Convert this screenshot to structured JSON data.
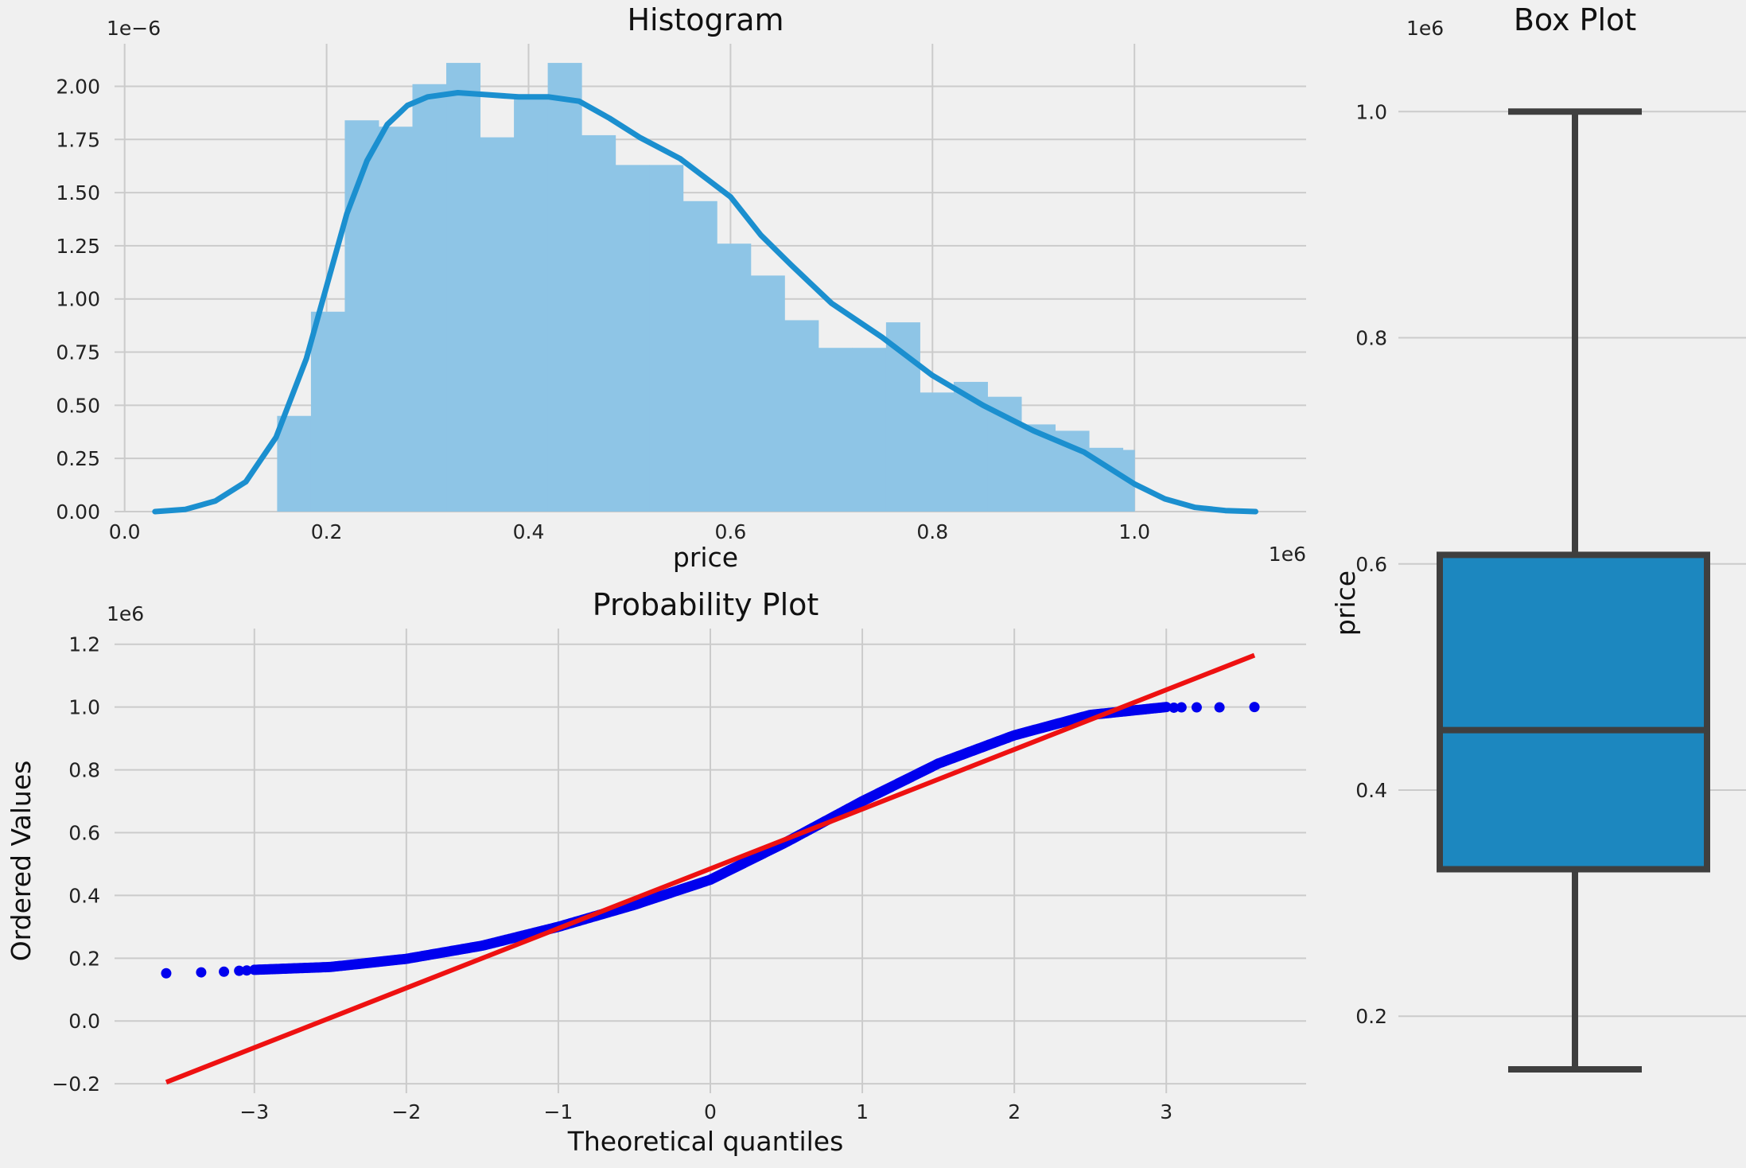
{
  "chart_data": [
    {
      "type": "bar",
      "title": "Histogram",
      "xlabel": "price",
      "ylabel": "",
      "x_offset_label": "1e6",
      "y_offset_label": "1e−6",
      "xlim": [
        -0.01,
        1.17
      ],
      "ylim": [
        0,
        2.2
      ],
      "x_ticks": [
        {
          "v": 0.0,
          "label": "0.0"
        },
        {
          "v": 0.2,
          "label": "0.2"
        },
        {
          "v": 0.4,
          "label": "0.4"
        },
        {
          "v": 0.6,
          "label": "0.6"
        },
        {
          "v": 0.8,
          "label": "0.8"
        },
        {
          "v": 1.0,
          "label": "1.0"
        }
      ],
      "y_ticks": [
        {
          "v": 0.0,
          "label": "0.00"
        },
        {
          "v": 0.25,
          "label": "0.25"
        },
        {
          "v": 0.5,
          "label": "0.50"
        },
        {
          "v": 0.75,
          "label": "0.75"
        },
        {
          "v": 1.0,
          "label": "1.00"
        },
        {
          "v": 1.25,
          "label": "1.25"
        },
        {
          "v": 1.5,
          "label": "1.50"
        },
        {
          "v": 1.75,
          "label": "1.75"
        },
        {
          "v": 2.0,
          "label": "2.00"
        }
      ],
      "bin_edges": [
        0.151,
        0.1845,
        0.218,
        0.2515,
        0.285,
        0.3185,
        0.352,
        0.3855,
        0.419,
        0.4525,
        0.486,
        0.5195,
        0.553,
        0.5865,
        0.62,
        0.6535,
        0.687,
        0.7205,
        0.754,
        0.7875,
        0.821,
        0.8545,
        0.888,
        0.9215,
        0.955,
        0.9885,
        1.0
      ],
      "values": [
        0.45,
        0.94,
        1.84,
        1.81,
        2.01,
        2.11,
        1.76,
        1.94,
        2.11,
        1.77,
        1.63,
        1.63,
        1.46,
        1.26,
        1.11,
        0.9,
        0.77,
        0.77,
        0.89,
        0.56,
        0.61,
        0.54,
        0.41,
        0.38,
        0.3,
        0.29
      ],
      "kde": {
        "x": [
          0.03,
          0.06,
          0.09,
          0.12,
          0.15,
          0.18,
          0.2,
          0.22,
          0.24,
          0.26,
          0.28,
          0.3,
          0.33,
          0.36,
          0.39,
          0.42,
          0.45,
          0.48,
          0.51,
          0.55,
          0.6,
          0.63,
          0.66,
          0.7,
          0.75,
          0.8,
          0.85,
          0.9,
          0.95,
          1.0,
          1.03,
          1.06,
          1.09,
          1.12
        ],
        "y": [
          0.0,
          0.01,
          0.05,
          0.14,
          0.35,
          0.72,
          1.06,
          1.4,
          1.65,
          1.82,
          1.91,
          1.95,
          1.97,
          1.96,
          1.95,
          1.95,
          1.93,
          1.85,
          1.76,
          1.66,
          1.48,
          1.3,
          1.16,
          0.98,
          0.82,
          0.64,
          0.5,
          0.38,
          0.28,
          0.13,
          0.06,
          0.02,
          0.005,
          0.0
        ]
      },
      "colors": {
        "bars": "#8ec5e6",
        "kde": "#1b8fcf"
      }
    },
    {
      "type": "scatter",
      "title": "Probability Plot",
      "xlabel": "Theoretical quantiles",
      "ylabel": "Ordered Values",
      "y_offset_label": "1e6",
      "xlim": [
        -3.92,
        3.92
      ],
      "ylim": [
        -0.23,
        1.25
      ],
      "x_ticks": [
        {
          "v": -3,
          "label": "−3"
        },
        {
          "v": -2,
          "label": "−2"
        },
        {
          "v": -1,
          "label": "−1"
        },
        {
          "v": 0,
          "label": "0"
        },
        {
          "v": 1,
          "label": "1"
        },
        {
          "v": 2,
          "label": "2"
        },
        {
          "v": 3,
          "label": "3"
        }
      ],
      "y_ticks": [
        {
          "v": -0.2,
          "label": "−0.2"
        },
        {
          "v": 0.0,
          "label": "0.0"
        },
        {
          "v": 0.2,
          "label": "0.2"
        },
        {
          "v": 0.4,
          "label": "0.4"
        },
        {
          "v": 0.6,
          "label": "0.6"
        },
        {
          "v": 0.8,
          "label": "0.8"
        },
        {
          "v": 1.0,
          "label": "1.0"
        },
        {
          "v": 1.2,
          "label": "1.2"
        }
      ],
      "fit_line": {
        "x": [
          -3.58,
          3.58
        ],
        "y": [
          -0.195,
          1.165
        ]
      },
      "quantile_curve": {
        "x": [
          -3.0,
          -2.5,
          -2.0,
          -1.5,
          -1.0,
          -0.5,
          0.0,
          0.5,
          1.0,
          1.5,
          2.0,
          2.5,
          3.0
        ],
        "y": [
          0.163,
          0.172,
          0.198,
          0.24,
          0.3,
          0.37,
          0.45,
          0.57,
          0.7,
          0.82,
          0.91,
          0.975,
          1.0
        ]
      },
      "tail_points": [
        {
          "x": -3.58,
          "y": 0.152
        },
        {
          "x": -3.35,
          "y": 0.155
        },
        {
          "x": -3.2,
          "y": 0.157
        },
        {
          "x": -3.1,
          "y": 0.16
        },
        {
          "x": -3.05,
          "y": 0.161
        },
        {
          "x": 3.05,
          "y": 0.998
        },
        {
          "x": 3.1,
          "y": 0.999
        },
        {
          "x": 3.2,
          "y": 0.999
        },
        {
          "x": 3.35,
          "y": 0.999
        },
        {
          "x": 3.58,
          "y": 1.0
        }
      ],
      "colors": {
        "points": "#0000ee",
        "line": "#ee1111"
      }
    },
    {
      "type": "box",
      "title": "Box Plot",
      "ylabel": "price",
      "y_offset_label": "1e6",
      "ylim": [
        0.108,
        1.06
      ],
      "y_ticks": [
        {
          "v": 0.2,
          "label": "0.2"
        },
        {
          "v": 0.4,
          "label": "0.4"
        },
        {
          "v": 0.6,
          "label": "0.6"
        },
        {
          "v": 0.8,
          "label": "0.8"
        },
        {
          "v": 1.0,
          "label": "1.0"
        }
      ],
      "stats": {
        "whisker_low": 0.153,
        "q1": 0.33,
        "median": 0.453,
        "q3": 0.608,
        "whisker_high": 1.0
      },
      "colors": {
        "box": "#1c87bf",
        "edge": "#3f3f3f"
      }
    }
  ]
}
